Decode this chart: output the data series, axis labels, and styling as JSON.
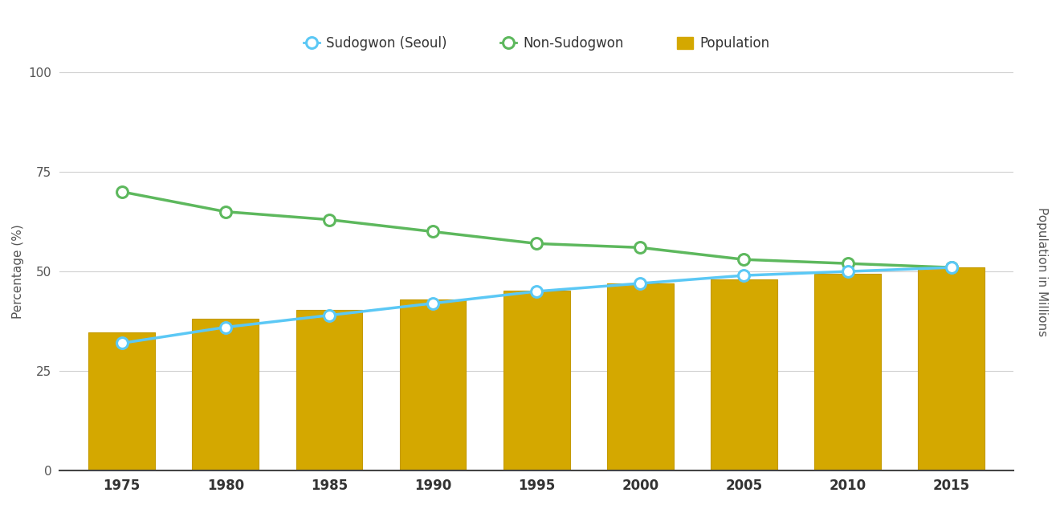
{
  "years": [
    1975,
    1980,
    1985,
    1990,
    1995,
    2000,
    2005,
    2010,
    2015
  ],
  "sudogwon": [
    32,
    36,
    39,
    42,
    45,
    47,
    49,
    50,
    51
  ],
  "non_sudogwon": [
    70,
    65,
    63,
    60,
    57,
    56,
    53,
    52,
    51
  ],
  "population": [
    34.7,
    38.1,
    40.4,
    42.9,
    45.1,
    47.0,
    48.1,
    49.4,
    51.0
  ],
  "sudogwon_color": "#5bc8f5",
  "non_sudogwon_color": "#5db85d",
  "population_color": "#d4a800",
  "bar_edge_color": "#c49a00",
  "bg_color": "#ffffff",
  "grid_color": "#d0d0d0",
  "left_ylabel": "Percentage (%)",
  "right_ylabel": "Population in Millions",
  "ylim_left": [
    0,
    100
  ],
  "yticks_left": [
    0,
    25,
    50,
    75,
    100
  ],
  "legend_sudogwon": "Sudogwon (Seoul)",
  "legend_non_sudogwon": "Non-Sudogwon",
  "legend_population": "Population",
  "axis_label_fontsize": 11,
  "tick_fontsize": 11,
  "legend_fontsize": 12
}
